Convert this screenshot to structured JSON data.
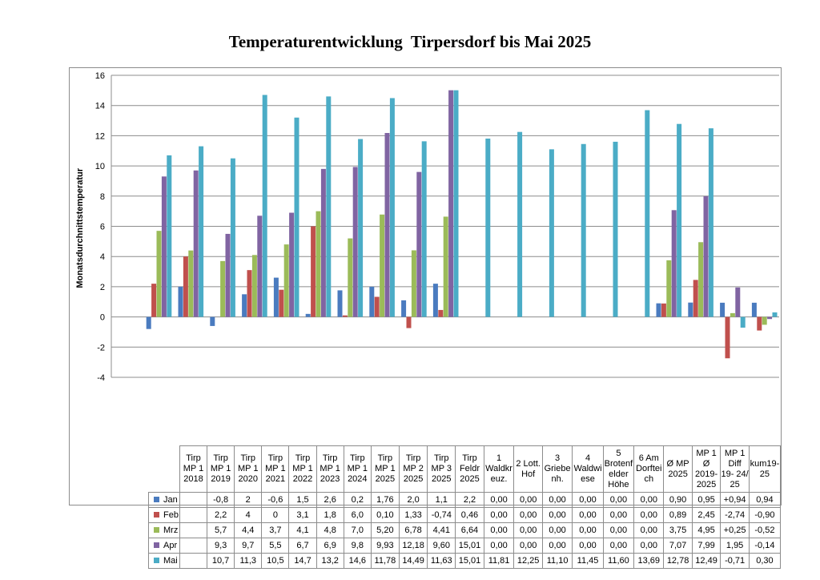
{
  "title": "Temperaturentwicklung  Tirpersdorf bis Mai 2025",
  "chart_data": {
    "type": "bar",
    "title": "Temperaturentwicklung  Tirpersdorf bis Mai 2025",
    "ylabel": "Monatsdurchnittstemperatur",
    "xlabel": "",
    "ylim": [
      -4,
      16
    ],
    "yticks": [
      "-4",
      "-2",
      "0",
      "2",
      "4",
      "6",
      "8",
      "10",
      "12",
      "14",
      "16"
    ],
    "grid": true,
    "legend": "left, in data table",
    "categories": [
      "Tirp MP 1 2018",
      "Tirp MP 1 2019",
      "Tirp MP 1 2020",
      "Tirp MP 1 2021",
      "Tirp MP 1 2022",
      "Tirp MP 1 2023",
      "Tirp MP 1 2024",
      "Tirp MP 1 2025",
      "Tirp MP 2 2025",
      "Tirp MP 3 2025",
      "Tirp Feldr 2025",
      "1 Waldkr euz.",
      "2 Lott. Hof",
      "3 Griebe nh.",
      "4 Waldwi ese",
      "5 Brotenf elder Höhe",
      "6 Am Dorftei ch",
      "Ø MP 2025",
      "MP 1 Ø 2019- 2025",
      "MP 1 Diff 19- 24/ 25",
      "kum19- 25"
    ],
    "series": [
      {
        "name": "Jan",
        "color": "#4a7bbf",
        "values": [
          null,
          -0.8,
          2,
          -0.6,
          1.5,
          2.6,
          0.2,
          1.76,
          2.0,
          1.1,
          2.2,
          0.0,
          0.0,
          0.0,
          0.0,
          0.0,
          0.0,
          0.9,
          0.95,
          0.94,
          0.94
        ],
        "labels": [
          "",
          "-0,8",
          "2",
          "-0,6",
          "1,5",
          "2,6",
          "0,2",
          "1,76",
          "2,0",
          "1,1",
          "2,2",
          "0,00",
          "0,00",
          "0,00",
          "0,00",
          "0,00",
          "0,00",
          "0,90",
          "0,95",
          "+0,94",
          "0,94"
        ]
      },
      {
        "name": "Feb",
        "color": "#c0504d",
        "values": [
          null,
          2.2,
          4,
          0,
          3.1,
          1.8,
          6.0,
          0.1,
          1.33,
          -0.74,
          0.46,
          0.0,
          0.0,
          0.0,
          0.0,
          0.0,
          0.0,
          0.89,
          2.45,
          -2.74,
          -0.9
        ],
        "labels": [
          "",
          "2,2",
          "4",
          "0",
          "3,1",
          "1,8",
          "6,0",
          "0,10",
          "1,33",
          "-0,74",
          "0,46",
          "0,00",
          "0,00",
          "0,00",
          "0,00",
          "0,00",
          "0,00",
          "0,89",
          "2,45",
          "-2,74",
          "-0,90"
        ]
      },
      {
        "name": "Mrz",
        "color": "#9bbb59",
        "values": [
          null,
          5.7,
          4.4,
          3.7,
          4.1,
          4.8,
          7.0,
          5.2,
          6.78,
          4.41,
          6.64,
          0.0,
          0.0,
          0.0,
          0.0,
          0.0,
          0.0,
          3.75,
          4.95,
          0.25,
          -0.52
        ],
        "labels": [
          "",
          "5,7",
          "4,4",
          "3,7",
          "4,1",
          "4,8",
          "7,0",
          "5,20",
          "6,78",
          "4,41",
          "6,64",
          "0,00",
          "0,00",
          "0,00",
          "0,00",
          "0,00",
          "0,00",
          "3,75",
          "4,95",
          "+0,25",
          "-0,52"
        ]
      },
      {
        "name": "Apr",
        "color": "#8064a2",
        "values": [
          null,
          9.3,
          9.7,
          5.5,
          6.7,
          6.9,
          9.8,
          9.93,
          12.18,
          9.6,
          15.01,
          0.0,
          0.0,
          0.0,
          0.0,
          0.0,
          0.0,
          7.07,
          7.99,
          1.95,
          -0.14
        ],
        "labels": [
          "",
          "9,3",
          "9,7",
          "5,5",
          "6,7",
          "6,9",
          "9,8",
          "9,93",
          "12,18",
          "9,60",
          "15,01",
          "0,00",
          "0,00",
          "0,00",
          "0,00",
          "0,00",
          "0,00",
          "7,07",
          "7,99",
          "1,95",
          "-0,14"
        ]
      },
      {
        "name": "Mai",
        "color": "#4bacc6",
        "values": [
          null,
          10.7,
          11.3,
          10.5,
          14.7,
          13.2,
          14.6,
          11.78,
          14.49,
          11.63,
          15.01,
          11.81,
          12.25,
          11.1,
          11.45,
          11.6,
          13.69,
          12.78,
          12.49,
          -0.71,
          0.3
        ],
        "labels": [
          "",
          "10,7",
          "11,3",
          "10,5",
          "14,7",
          "13,2",
          "14,6",
          "11,78",
          "14,49",
          "11,63",
          "15,01",
          "11,81",
          "12,25",
          "11,10",
          "11,45",
          "11,60",
          "13,69",
          "12,78",
          "12,49",
          "-0,71",
          "0,30"
        ]
      }
    ]
  }
}
